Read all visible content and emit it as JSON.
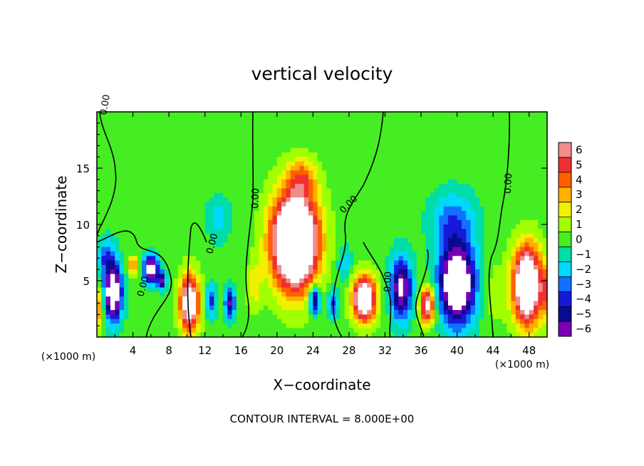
{
  "chart_data": {
    "type": "heatmap",
    "title": "vertical velocity",
    "xlabel": "X−coordinate",
    "ylabel": "Z−coordinate",
    "x_unit_label": "(×1000 m)",
    "y_unit_label": "(×1000 m)",
    "xlim": [
      0,
      50
    ],
    "ylim": [
      0,
      20
    ],
    "x_ticks": [
      "4",
      "8",
      "12",
      "16",
      "20",
      "24",
      "28",
      "32",
      "36",
      "40",
      "44",
      "48"
    ],
    "y_ticks": [
      "5",
      "10",
      "15"
    ],
    "colorbar": {
      "labels": [
        "6",
        "5",
        "4",
        "3",
        "2",
        "1",
        "0",
        "−1",
        "−2",
        "−3",
        "−4",
        "−5",
        "−6"
      ],
      "colors": [
        "#f08c8c",
        "#f03030",
        "#ff6000",
        "#ffb000",
        "#f0f000",
        "#a0ff00",
        "#44ee22",
        "#00ddaa",
        "#00d8ff",
        "#1070ff",
        "#1818d8",
        "#0a0a8c",
        "#7a00b4"
      ]
    },
    "contour_interval_text": "CONTOUR INTERVAL = 8.000E+00",
    "contour_labels": [
      "0.00",
      "0.00",
      "0.00",
      "0.00",
      "0.00",
      "0.00",
      "0.00"
    ],
    "features": [
      {
        "x": 1.8,
        "z": 4.0,
        "w": -9,
        "sx": 1.0,
        "sz": 2.6
      },
      {
        "x": 1.0,
        "z": 7.2,
        "w": -3,
        "sx": 0.9,
        "sz": 1.6
      },
      {
        "x": 0.2,
        "z": 2.5,
        "w": 4,
        "sx": 0.6,
        "sz": 1.8
      },
      {
        "x": 4.0,
        "z": 6.3,
        "w": 4,
        "sx": 0.6,
        "sz": 0.8
      },
      {
        "x": 6.0,
        "z": 6.0,
        "w": -8,
        "sx": 0.8,
        "sz": 1.2
      },
      {
        "x": 7.2,
        "z": 5.0,
        "w": -6,
        "sx": 0.5,
        "sz": 0.8
      },
      {
        "x": 10.3,
        "z": 3.0,
        "w": 9,
        "sx": 1.1,
        "sz": 2.5
      },
      {
        "x": 12.6,
        "z": 3.2,
        "w": -4,
        "sx": 0.6,
        "sz": 1.5
      },
      {
        "x": 14.8,
        "z": 3.0,
        "w": -6,
        "sx": 0.6,
        "sz": 1.3
      },
      {
        "x": 13.5,
        "z": 10.5,
        "w": -2,
        "sx": 1.3,
        "sz": 2.0
      },
      {
        "x": 17.5,
        "z": 4.5,
        "w": 2,
        "sx": 0.8,
        "sz": 2.2
      },
      {
        "x": 22.0,
        "z": 8.5,
        "w": 14,
        "sx": 2.5,
        "sz": 4.2
      },
      {
        "x": 22.8,
        "z": 14.2,
        "w": 3,
        "sx": 1.6,
        "sz": 1.7
      },
      {
        "x": 24.2,
        "z": 3.3,
        "w": -7,
        "sx": 0.6,
        "sz": 1.3
      },
      {
        "x": 26.2,
        "z": 3.0,
        "w": -4,
        "sx": 0.6,
        "sz": 1.3
      },
      {
        "x": 29.7,
        "z": 3.4,
        "w": 10,
        "sx": 1.3,
        "sz": 2.0
      },
      {
        "x": 27.5,
        "z": 6.5,
        "w": -2,
        "sx": 0.8,
        "sz": 1.6
      },
      {
        "x": 33.8,
        "z": 4.3,
        "w": -7,
        "sx": 1.2,
        "sz": 2.8
      },
      {
        "x": 40.0,
        "z": 4.8,
        "w": -10,
        "sx": 2.0,
        "sz": 3.6
      },
      {
        "x": 36.7,
        "z": 2.8,
        "w": 8,
        "sx": 0.8,
        "sz": 1.6
      },
      {
        "x": 39.5,
        "z": 10.5,
        "w": -3,
        "sx": 2.5,
        "sz": 2.5
      },
      {
        "x": 47.8,
        "z": 4.6,
        "w": 11,
        "sx": 1.6,
        "sz": 3.4
      },
      {
        "x": 49.8,
        "z": 4.0,
        "w": 3,
        "sx": 0.5,
        "sz": 2.0
      },
      {
        "x": 44.0,
        "z": 4.0,
        "w": 1,
        "sx": 1.2,
        "sz": 3.0
      }
    ]
  }
}
